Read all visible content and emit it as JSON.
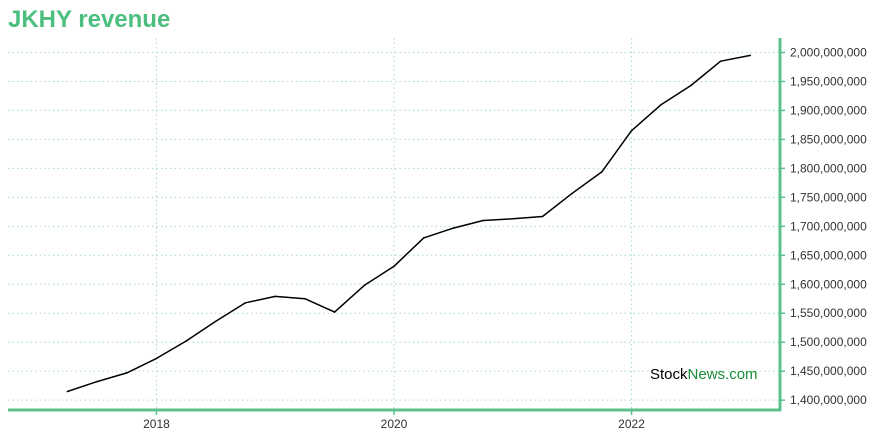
{
  "title": "JKHY revenue",
  "watermark": {
    "part1": "Stock",
    "part2": "News",
    "part3": ".com"
  },
  "chart_data": {
    "type": "line",
    "title": "JKHY revenue",
    "xlabel": "",
    "ylabel": "",
    "x_ticks": [
      "2018",
      "2020",
      "2022"
    ],
    "y_ticks": [
      "1,400,000,000",
      "1,450,000,000",
      "1,500,000,000",
      "1,550,000,000",
      "1,600,000,000",
      "1,650,000,000",
      "1,700,000,000",
      "1,750,000,000",
      "1,800,000,000",
      "1,850,000,000",
      "1,900,000,000",
      "1,950,000,000",
      "2,000,000,000"
    ],
    "xlim": [
      2016.75,
      2023.25
    ],
    "ylim": [
      1383000000,
      2025000000
    ],
    "grid": true,
    "y_axis_side": "right",
    "colors": {
      "line": "#000000",
      "axis": "#5cc08a",
      "grid": "#a8dcc0",
      "title": "#4cbf80"
    },
    "series": [
      {
        "x": [
          2017.25,
          2017.5,
          2017.75,
          2018.0,
          2018.25,
          2018.5,
          2018.75,
          2019.0,
          2019.25,
          2019.5,
          2019.75,
          2020.0,
          2020.25,
          2020.5,
          2020.75,
          2021.0,
          2021.25,
          2021.5,
          2021.75,
          2022.0,
          2022.25,
          2022.5,
          2022.75,
          2023.0
        ],
        "values": [
          1415000000,
          1432000000,
          1447000000,
          1472000000,
          1502000000,
          1536000000,
          1568000000,
          1579000000,
          1575000000,
          1552000000,
          1598000000,
          1631000000,
          1680000000,
          1697000000,
          1710000000,
          1713000000,
          1717000000,
          1757000000,
          1794000000,
          1865000000,
          1910000000,
          1943000000,
          1985000000,
          1995000000
        ]
      }
    ]
  }
}
